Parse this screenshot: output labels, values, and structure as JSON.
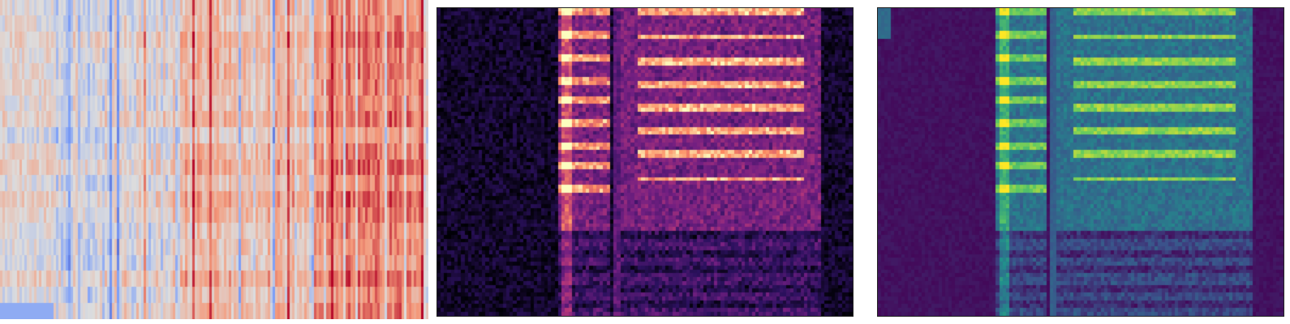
{
  "panels": [
    {
      "id": "feature-heatmap",
      "colormap": "coolwarm"
    },
    {
      "id": "spectrogram-magma",
      "colormap": "magma"
    },
    {
      "id": "spectrogram-viridis",
      "colormap": "viridis"
    }
  ]
}
